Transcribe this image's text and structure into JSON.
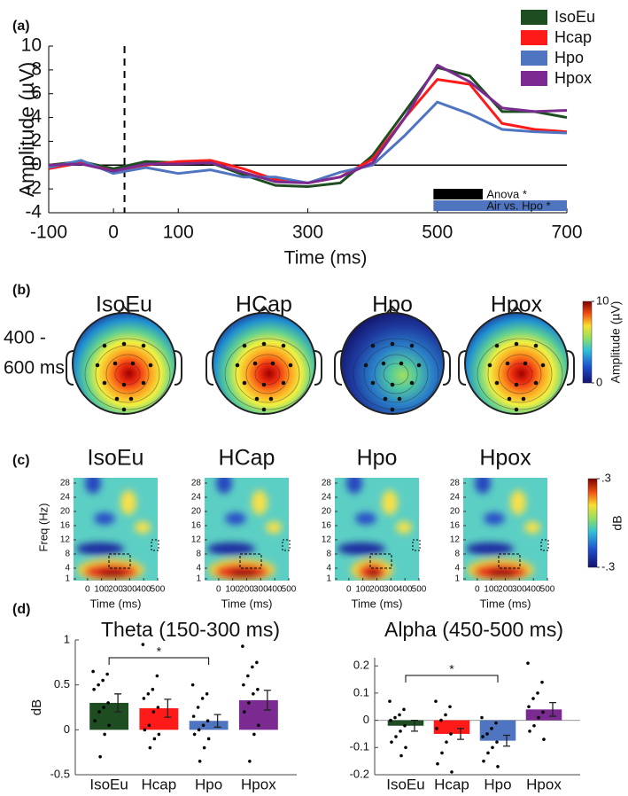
{
  "chart_data": [
    {
      "type": "line",
      "panel_label": "(a)",
      "x": [
        -100,
        -50,
        0,
        50,
        100,
        150,
        200,
        250,
        300,
        350,
        400,
        450,
        500,
        550,
        600,
        650,
        700
      ],
      "xlim": [
        -100,
        700
      ],
      "xticks": [
        -100,
        0,
        100,
        300,
        500,
        700
      ],
      "ylim": [
        -4,
        10
      ],
      "yticks": [
        -4,
        -2,
        0,
        2,
        4,
        6,
        8,
        10
      ],
      "xlabel": "Time (ms)",
      "ylabel": "Amplitude (µV)",
      "event_line": 17,
      "series": [
        {
          "name": "IsoEu",
          "color": "#1e4d22",
          "values": [
            0,
            0.3,
            -0.3,
            0.3,
            0.2,
            0.2,
            -0.8,
            -1.7,
            -1.8,
            -1.5,
            0.8,
            4.5,
            8.2,
            7.5,
            4.5,
            4.5,
            4.0
          ]
        },
        {
          "name": "Hcap",
          "color": "#ff1a1a",
          "values": [
            -0.3,
            0.2,
            -0.5,
            0,
            0.3,
            0.4,
            -0.3,
            -1.2,
            -1.5,
            -1.0,
            0.5,
            4.0,
            7.2,
            6.8,
            3.5,
            3.0,
            2.8
          ]
        },
        {
          "name": "Hpo",
          "color": "#4f74c0",
          "values": [
            -0.2,
            0.4,
            -0.7,
            -0.2,
            -0.7,
            -0.4,
            -1.0,
            -1.0,
            -1.5,
            -0.6,
            0,
            2.5,
            5.3,
            4.3,
            3.0,
            2.8,
            2.7
          ]
        },
        {
          "name": "Hpox",
          "color": "#7a2a90",
          "values": [
            0,
            0.1,
            -0.5,
            0.1,
            0.1,
            0.2,
            -0.6,
            -1.4,
            -1.5,
            -1.0,
            0.2,
            4.0,
            8.4,
            7.0,
            4.8,
            4.5,
            4.6
          ]
        }
      ],
      "sig_bars": [
        {
          "label": "Anova *",
          "start": 494,
          "end": 570,
          "color": "#000000"
        },
        {
          "label": "Air vs. Hpo *",
          "start": 494,
          "end": 700,
          "color": "#4f74c0"
        }
      ]
    },
    {
      "type": "bar",
      "panel_label": "(d)",
      "title": "Theta (150-300 ms)",
      "ylabel": "dB",
      "categories": [
        "IsoEu",
        "Hcap",
        "Hpo",
        "Hpox"
      ],
      "colors": [
        "#1e4d22",
        "#ff1a1a",
        "#4f74c0",
        "#7a2a90"
      ],
      "values": [
        0.3,
        0.24,
        0.1,
        0.33
      ],
      "errors": [
        0.1,
        0.1,
        0.07,
        0.11
      ],
      "points": [
        [
          0.65,
          0.62,
          0.55,
          0.5,
          0.45,
          0.3,
          0.25,
          0.2,
          0.1,
          0.05,
          -0.05,
          -0.3
        ],
        [
          0.95,
          0.6,
          0.45,
          0.4,
          0.35,
          0.25,
          0.2,
          0.05,
          0,
          -0.05,
          -0.1,
          -0.2
        ],
        [
          0.5,
          0.4,
          0.35,
          0.25,
          0.15,
          0.1,
          0.05,
          0,
          -0.05,
          -0.1,
          -0.2,
          -0.35
        ],
        [
          0.93,
          0.75,
          0.7,
          0.6,
          0.5,
          0.45,
          0.4,
          0.3,
          0.2,
          0.05,
          -0.05,
          -0.35
        ]
      ],
      "ylim": [
        -0.5,
        1
      ],
      "yticks": [
        -0.5,
        0,
        0.5,
        1
      ],
      "significance": [
        {
          "from": 0,
          "to": 2,
          "label": "*"
        }
      ]
    },
    {
      "type": "bar",
      "title": "Alpha (450-500 ms)",
      "categories": [
        "IsoEu",
        "Hcap",
        "Hpo",
        "Hpox"
      ],
      "colors": [
        "#1e4d22",
        "#ff1a1a",
        "#4f74c0",
        "#7a2a90"
      ],
      "values": [
        -0.02,
        -0.05,
        -0.075,
        0.04
      ],
      "errors": [
        0.02,
        0.02,
        0.02,
        0.025
      ],
      "points": [
        [
          0.07,
          0.04,
          0.02,
          0.01,
          0,
          -0.02,
          -0.04,
          -0.06,
          -0.08,
          -0.1,
          -0.13
        ],
        [
          0.07,
          0.05,
          0.02,
          0,
          -0.03,
          -0.05,
          -0.08,
          -0.12,
          -0.16,
          -0.19
        ],
        [
          0.01,
          -0.01,
          -0.03,
          -0.05,
          -0.06,
          -0.08,
          -0.1,
          -0.12,
          -0.15,
          -0.17
        ],
        [
          0.21,
          0.14,
          0.1,
          0.08,
          0.05,
          0.03,
          0.01,
          -0.02,
          -0.04,
          -0.07
        ]
      ],
      "ylim": [
        -0.2,
        0.23
      ],
      "yticks": [
        -0.2,
        -0.1,
        0,
        0.1,
        0.2
      ],
      "zero_line": true,
      "significance": [
        {
          "from": 0,
          "to": 2,
          "label": "*"
        }
      ]
    }
  ],
  "topomaps": {
    "panel_label": "(b)",
    "titles": [
      "IsoEu",
      "HCap",
      "Hpo",
      "Hpox"
    ],
    "window_label": [
      "400 -",
      "600 ms"
    ],
    "colorbar": {
      "label": "Amplitude (µV)",
      "lim": [
        0,
        10
      ],
      "ticks": [
        0,
        10
      ]
    }
  },
  "tf_maps": {
    "panel_label": "(c)",
    "titles": [
      "IsoEu",
      "HCap",
      "Hpo",
      "Hpox"
    ],
    "ylabel": "Freq (Hz)",
    "xlabel": "Time (ms)",
    "xlim": [
      -100,
      500
    ],
    "xticks": [
      0,
      100,
      200,
      300,
      400,
      500
    ],
    "ylim": [
      0.5,
      29.5
    ],
    "yticks": [
      1,
      4,
      8,
      12,
      16,
      20,
      24,
      28
    ],
    "colorbar": {
      "label": "dB",
      "lim": [
        -0.3,
        0.3
      ],
      "ticks": [
        {
          "value": 0.3,
          "label": ".3"
        },
        {
          "value": -0.3,
          "label": "-.3"
        }
      ]
    }
  }
}
